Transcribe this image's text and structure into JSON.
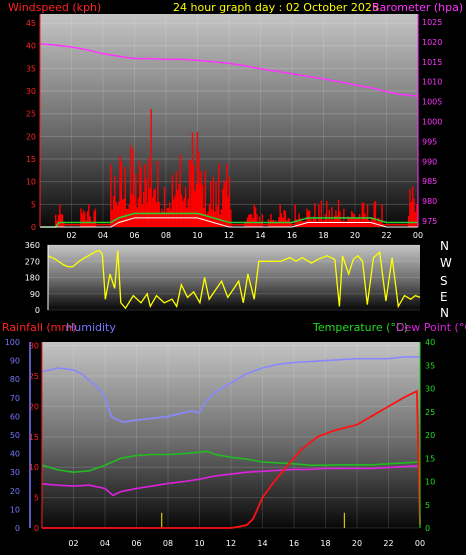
{
  "header": {
    "title": "24 hour graph day : 02 October 2025",
    "windspeed_label": "Windspeed (kph)",
    "barometer_label": "Barometer (hpa)"
  },
  "colors": {
    "wind": "#ff0000",
    "gust": "#ff0000",
    "wind_avg": "#2ecc2e",
    "wind_min": "#ffffff",
    "barometer": "#ff33ff",
    "direction": "#ffff00",
    "rain": "#ff1111",
    "humidity": "#8888ff",
    "temperature": "#22bb22",
    "dewpoint": "#dd22dd",
    "left_axis_wind": "#ff2222",
    "right_axis_baro": "#ff33ff",
    "rain_axis": "#ff2222",
    "humidity_axis": "#7777ff",
    "temp_axis": "#22dd22",
    "tick": "#ffffff"
  },
  "chart_data": [
    {
      "type": "line",
      "name": "wind-barometer",
      "x_tick_labels": [
        "02",
        "04",
        "06",
        "08",
        "10",
        "12",
        "14",
        "16",
        "18",
        "20",
        "22",
        "00"
      ],
      "x_ticks_hours": [
        2,
        4,
        6,
        8,
        10,
        12,
        14,
        16,
        18,
        20,
        22,
        24
      ],
      "y_left_label": "Windspeed (kph)",
      "y_left_ticks": [
        0,
        5,
        10,
        15,
        20,
        25,
        30,
        35,
        40,
        45
      ],
      "y_left_range": [
        0,
        47
      ],
      "y_right_label": "Barometer (hpa)",
      "y_right_ticks": [
        975,
        980,
        985,
        990,
        995,
        1000,
        1005,
        1010,
        1015,
        1020,
        1025
      ],
      "y_right_range": [
        973.5,
        1027
      ],
      "gust_bursts": [
        {
          "from": 1.0,
          "to": 1.6,
          "max": 5
        },
        {
          "from": 2.6,
          "to": 3.6,
          "max": 5
        },
        {
          "from": 4.5,
          "to": 7.0,
          "max": 18
        },
        {
          "from": 6.8,
          "to": 7.4,
          "max": 26
        },
        {
          "from": 7.4,
          "to": 10.5,
          "max": 16
        },
        {
          "from": 9.6,
          "to": 10.4,
          "max": 21
        },
        {
          "from": 10.5,
          "to": 12.2,
          "max": 14
        },
        {
          "from": 13.0,
          "to": 14.2,
          "max": 5
        },
        {
          "from": 14.5,
          "to": 16.0,
          "max": 5
        },
        {
          "from": 16.2,
          "to": 21.8,
          "max": 6
        },
        {
          "from": 23.4,
          "to": 24.0,
          "max": 9
        }
      ],
      "wind_avg_points": [
        [
          0,
          0
        ],
        [
          1,
          0
        ],
        [
          1.2,
          1
        ],
        [
          2.5,
          1
        ],
        [
          4.5,
          1
        ],
        [
          5,
          2
        ],
        [
          6,
          3
        ],
        [
          7,
          3
        ],
        [
          8,
          3
        ],
        [
          9,
          3
        ],
        [
          10,
          3
        ],
        [
          11,
          2
        ],
        [
          12,
          1
        ],
        [
          13,
          1
        ],
        [
          14,
          1
        ],
        [
          16,
          1
        ],
        [
          17,
          2
        ],
        [
          18,
          2
        ],
        [
          20,
          2
        ],
        [
          21,
          2
        ],
        [
          22,
          1
        ],
        [
          23,
          1
        ],
        [
          24,
          1
        ]
      ],
      "barometer_points": [
        [
          0,
          1019.5
        ],
        [
          1,
          1019.2
        ],
        [
          2,
          1018.7
        ],
        [
          3,
          1018.0
        ],
        [
          4,
          1017.0
        ],
        [
          5,
          1016.4
        ],
        [
          6,
          1015.8
        ],
        [
          7,
          1015.8
        ],
        [
          8,
          1015.6
        ],
        [
          9,
          1015.6
        ],
        [
          10,
          1015.4
        ],
        [
          11,
          1015.0
        ],
        [
          12,
          1014.6
        ],
        [
          13,
          1014.0
        ],
        [
          14,
          1013.2
        ],
        [
          15,
          1012.6
        ],
        [
          16,
          1012.0
        ],
        [
          17,
          1011.3
        ],
        [
          18,
          1010.7
        ],
        [
          19,
          1010.0
        ],
        [
          20,
          1009.2
        ],
        [
          21,
          1008.5
        ],
        [
          22,
          1007.5
        ],
        [
          23,
          1006.7
        ],
        [
          24,
          1006.4
        ]
      ]
    },
    {
      "type": "line",
      "name": "wind-direction",
      "y_left_ticks": [
        0,
        90,
        180,
        270,
        360
      ],
      "y_left_range": [
        0,
        360
      ],
      "compass_labels": [
        "N",
        "W",
        "S",
        "E",
        "N"
      ],
      "direction_points": [
        [
          0,
          300
        ],
        [
          0.5,
          280
        ],
        [
          1.0,
          250
        ],
        [
          1.3,
          240
        ],
        [
          1.6,
          240
        ],
        [
          2.0,
          270
        ],
        [
          2.6,
          300
        ],
        [
          3.0,
          320
        ],
        [
          3.3,
          330
        ],
        [
          3.5,
          310
        ],
        [
          3.7,
          60
        ],
        [
          4.0,
          200
        ],
        [
          4.3,
          120
        ],
        [
          4.5,
          330
        ],
        [
          4.7,
          40
        ],
        [
          5.0,
          10
        ],
        [
          5.5,
          80
        ],
        [
          6.0,
          40
        ],
        [
          6.4,
          90
        ],
        [
          6.6,
          20
        ],
        [
          7.0,
          80
        ],
        [
          7.5,
          40
        ],
        [
          8.0,
          60
        ],
        [
          8.3,
          20
        ],
        [
          8.6,
          140
        ],
        [
          9.0,
          70
        ],
        [
          9.4,
          100
        ],
        [
          9.8,
          40
        ],
        [
          10.1,
          180
        ],
        [
          10.4,
          60
        ],
        [
          10.8,
          110
        ],
        [
          11.2,
          160
        ],
        [
          11.6,
          70
        ],
        [
          12.0,
          120
        ],
        [
          12.3,
          160
        ],
        [
          12.6,
          40
        ],
        [
          12.9,
          200
        ],
        [
          13.3,
          60
        ],
        [
          13.6,
          270
        ],
        [
          14.0,
          270
        ],
        [
          15.0,
          270
        ],
        [
          15.6,
          290
        ],
        [
          16.0,
          270
        ],
        [
          16.4,
          290
        ],
        [
          17.0,
          260
        ],
        [
          17.4,
          280
        ],
        [
          18.0,
          300
        ],
        [
          18.5,
          280
        ],
        [
          18.8,
          20
        ],
        [
          19.0,
          300
        ],
        [
          19.4,
          200
        ],
        [
          19.7,
          280
        ],
        [
          20.0,
          300
        ],
        [
          20.3,
          270
        ],
        [
          20.6,
          30
        ],
        [
          21.0,
          290
        ],
        [
          21.4,
          320
        ],
        [
          21.8,
          50
        ],
        [
          22.2,
          290
        ],
        [
          22.6,
          20
        ],
        [
          23.0,
          80
        ],
        [
          23.4,
          60
        ],
        [
          23.7,
          80
        ],
        [
          24.0,
          70
        ]
      ]
    },
    {
      "type": "line",
      "name": "rain-humidity-temperature",
      "legend_left": [
        "Rainfall (mm)",
        "Humidity"
      ],
      "legend_right": [
        "Temperature (°C)",
        "Dew Point (°C)"
      ],
      "humidity_ticks": [
        0,
        10,
        20,
        30,
        40,
        50,
        60,
        70,
        80,
        90,
        100
      ],
      "humidity_range": [
        0,
        100
      ],
      "rain_ticks": [
        0,
        5,
        10,
        15,
        20,
        25,
        30
      ],
      "rain_range": [
        0,
        30.6
      ],
      "temp_ticks": [
        0,
        5,
        10,
        15,
        20,
        25,
        30,
        35,
        40
      ],
      "temp_range": [
        0,
        40
      ],
      "rain_points": [
        [
          0,
          0
        ],
        [
          12,
          0
        ],
        [
          12.5,
          0.2
        ],
        [
          13,
          0.5
        ],
        [
          13.4,
          1.5
        ],
        [
          14,
          5
        ],
        [
          14.7,
          7.5
        ],
        [
          15.5,
          10
        ],
        [
          16.5,
          13
        ],
        [
          17.5,
          15
        ],
        [
          18.5,
          16
        ],
        [
          20,
          17
        ],
        [
          21,
          18.5
        ],
        [
          22,
          20
        ],
        [
          23,
          21.5
        ],
        [
          23.8,
          22.5
        ],
        [
          24,
          0.5
        ]
      ],
      "rain_rate_spikes": [
        [
          7.6,
          2.5
        ],
        [
          19.2,
          2.5
        ]
      ],
      "humidity_points": [
        [
          0,
          84
        ],
        [
          1,
          86
        ],
        [
          2,
          85
        ],
        [
          2.5,
          83
        ],
        [
          3.5,
          76
        ],
        [
          4.0,
          70
        ],
        [
          4.4,
          60
        ],
        [
          4.8,
          58
        ],
        [
          5.2,
          57
        ],
        [
          6,
          58
        ],
        [
          7,
          59
        ],
        [
          8,
          60
        ],
        [
          9,
          62
        ],
        [
          9.5,
          63
        ],
        [
          10,
          62
        ],
        [
          10.4,
          68
        ],
        [
          11,
          73
        ],
        [
          12,
          78
        ],
        [
          13,
          83
        ],
        [
          14,
          86
        ],
        [
          15,
          88
        ],
        [
          16,
          89
        ],
        [
          18,
          90
        ],
        [
          20,
          91
        ],
        [
          22,
          91
        ],
        [
          23,
          92
        ],
        [
          24,
          92
        ]
      ],
      "temperature_points": [
        [
          0,
          13.5
        ],
        [
          1,
          12.5
        ],
        [
          2,
          12.0
        ],
        [
          3,
          12.3
        ],
        [
          4,
          13.5
        ],
        [
          5,
          15
        ],
        [
          6,
          15.6
        ],
        [
          7,
          15.8
        ],
        [
          8,
          15.8
        ],
        [
          9,
          16
        ],
        [
          10,
          16.3
        ],
        [
          10.5,
          16.5
        ],
        [
          11,
          15.8
        ],
        [
          12,
          15.2
        ],
        [
          13,
          14.8
        ],
        [
          14,
          14.2
        ],
        [
          15,
          14
        ],
        [
          16,
          13.8
        ],
        [
          17,
          13.5
        ],
        [
          18,
          13.5
        ],
        [
          19,
          13.6
        ],
        [
          20,
          13.6
        ],
        [
          21,
          13.6
        ],
        [
          22,
          13.8
        ],
        [
          23,
          14
        ],
        [
          24,
          14.2
        ]
      ],
      "dewpoint_points": [
        [
          0,
          9.5
        ],
        [
          1,
          9.2
        ],
        [
          2,
          9.0
        ],
        [
          3,
          9.2
        ],
        [
          4,
          8.5
        ],
        [
          4.5,
          7
        ],
        [
          5,
          7.8
        ],
        [
          6,
          8.5
        ],
        [
          7,
          9.0
        ],
        [
          8,
          9.6
        ],
        [
          9,
          10
        ],
        [
          10,
          10.5
        ],
        [
          11,
          11.2
        ],
        [
          12,
          11.6
        ],
        [
          13,
          12
        ],
        [
          14,
          12.2
        ],
        [
          15,
          12.4
        ],
        [
          16,
          12.6
        ],
        [
          17,
          12.6
        ],
        [
          18,
          12.8
        ],
        [
          19,
          12.8
        ],
        [
          20,
          12.8
        ],
        [
          21,
          12.8
        ],
        [
          22,
          13
        ],
        [
          23,
          13.2
        ],
        [
          24,
          13.4
        ]
      ]
    }
  ]
}
